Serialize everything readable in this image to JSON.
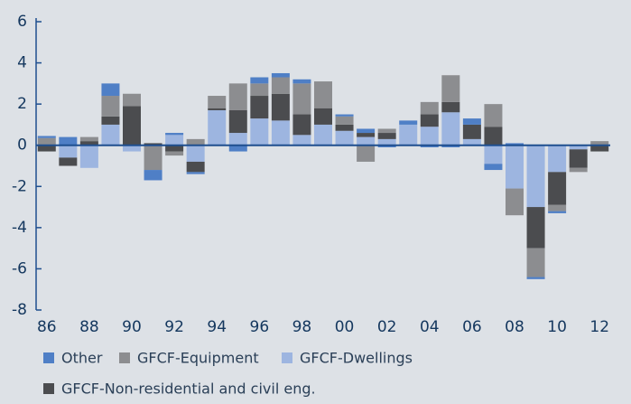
{
  "chart_data": {
    "type": "bar",
    "stacked": true,
    "categories": [
      "86",
      null,
      "88",
      null,
      "90",
      null,
      "92",
      null,
      "94",
      null,
      "96",
      null,
      "98",
      null,
      "00",
      null,
      "02",
      null,
      "04",
      null,
      "06",
      null,
      "08",
      null,
      "10",
      null,
      "12"
    ],
    "series": [
      {
        "name": "Other",
        "color": "#4f7fc6",
        "values": [
          0.1,
          0.4,
          0,
          0.6,
          0,
          -0.5,
          0.1,
          -0.1,
          0,
          -0.3,
          0.3,
          0.2,
          0.2,
          0,
          0.1,
          0.2,
          -0.1,
          0.2,
          -0.1,
          -0.1,
          0.3,
          -0.3,
          0.1,
          -0.1,
          -0.1,
          0,
          0
        ]
      },
      {
        "name": "GFCF-Equipment",
        "color": "#8c8d90",
        "values": [
          0.35,
          0,
          0.2,
          1.0,
          0.6,
          -1.2,
          -0.2,
          0.3,
          0.6,
          1.3,
          0.6,
          0.8,
          1.5,
          1.3,
          0.4,
          -0.8,
          0.2,
          0,
          0.6,
          1.3,
          0,
          1.1,
          -1.3,
          -1.4,
          -0.3,
          -0.2,
          0.2
        ]
      },
      {
        "name": "GFCF-Dwellings",
        "color": "#9db5e0",
        "values": [
          0,
          -0.6,
          -1.1,
          1.0,
          -0.3,
          0,
          0.5,
          -0.8,
          1.7,
          0.6,
          1.3,
          1.2,
          0.5,
          1.0,
          0.7,
          0.4,
          0.3,
          1.0,
          0.9,
          1.6,
          0.3,
          -0.9,
          -2.1,
          -3.0,
          -1.3,
          -0.2,
          0
        ]
      },
      {
        "name": "GFCF-Non-residential and civil eng.",
        "color": "#4b4c4f",
        "values": [
          -0.3,
          -0.4,
          0.2,
          0.4,
          1.9,
          0.1,
          -0.3,
          -0.5,
          0.1,
          1.1,
          1.1,
          1.3,
          1.0,
          0.8,
          0.3,
          0.2,
          0.3,
          0,
          0.6,
          0.5,
          0.7,
          0.9,
          0,
          -2.0,
          -1.6,
          -0.9,
          -0.3
        ]
      }
    ],
    "ylim": [
      -8,
      6
    ],
    "yticks": [
      -8,
      -6,
      -4,
      -2,
      0,
      2,
      4,
      6
    ]
  }
}
